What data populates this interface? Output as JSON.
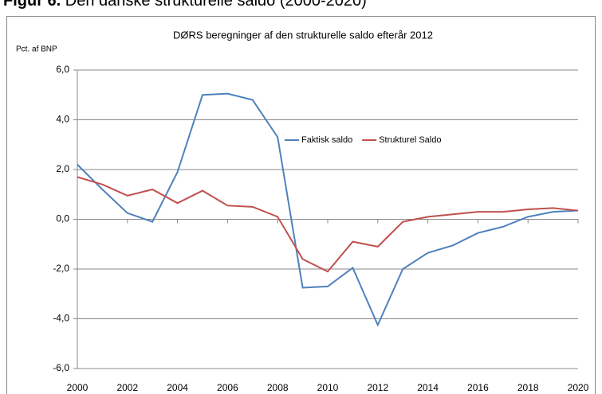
{
  "heading": {
    "label": "Figur 6.",
    "text": "Den danske strukturelle saldo (2000-2020)"
  },
  "chart_data": {
    "type": "line",
    "title": "DØRS beregninger af den strukturelle saldo efterår 2012",
    "ylabel": "Pct. af BNP",
    "x": [
      2000,
      2001,
      2002,
      2003,
      2004,
      2005,
      2006,
      2007,
      2008,
      2009,
      2010,
      2011,
      2012,
      2013,
      2014,
      2015,
      2016,
      2017,
      2018,
      2019,
      2020
    ],
    "xlim": [
      2000,
      2020
    ],
    "xticks": [
      2000,
      2002,
      2004,
      2006,
      2008,
      2010,
      2012,
      2014,
      2016,
      2018,
      2020
    ],
    "ylim": [
      -6,
      6
    ],
    "yticks": [
      {
        "value": -6,
        "label": "-6,0"
      },
      {
        "value": -4,
        "label": "-4,0"
      },
      {
        "value": -2,
        "label": "-2,0"
      },
      {
        "value": 0,
        "label": "0,0"
      },
      {
        "value": 2,
        "label": "2,0"
      },
      {
        "value": 4,
        "label": "4,0"
      },
      {
        "value": 6,
        "label": "6,0"
      }
    ],
    "grid": true,
    "legend": "top",
    "series": [
      {
        "name": "Faktisk saldo",
        "color": "#4f81bd",
        "values": [
          2.2,
          1.2,
          0.25,
          -0.1,
          1.9,
          5.0,
          5.05,
          4.8,
          3.3,
          -2.75,
          -2.7,
          -1.95,
          -4.25,
          -2.0,
          -1.35,
          -1.05,
          -0.55,
          -0.3,
          0.1,
          0.3,
          0.35
        ]
      },
      {
        "name": "Strukturel Saldo",
        "color": "#c0504d",
        "values": [
          1.7,
          1.4,
          0.95,
          1.2,
          0.65,
          1.15,
          0.55,
          0.5,
          0.1,
          -1.6,
          -2.1,
          -0.9,
          -1.1,
          -0.1,
          0.1,
          0.2,
          0.3,
          0.3,
          0.4,
          0.45,
          0.35
        ]
      }
    ]
  }
}
